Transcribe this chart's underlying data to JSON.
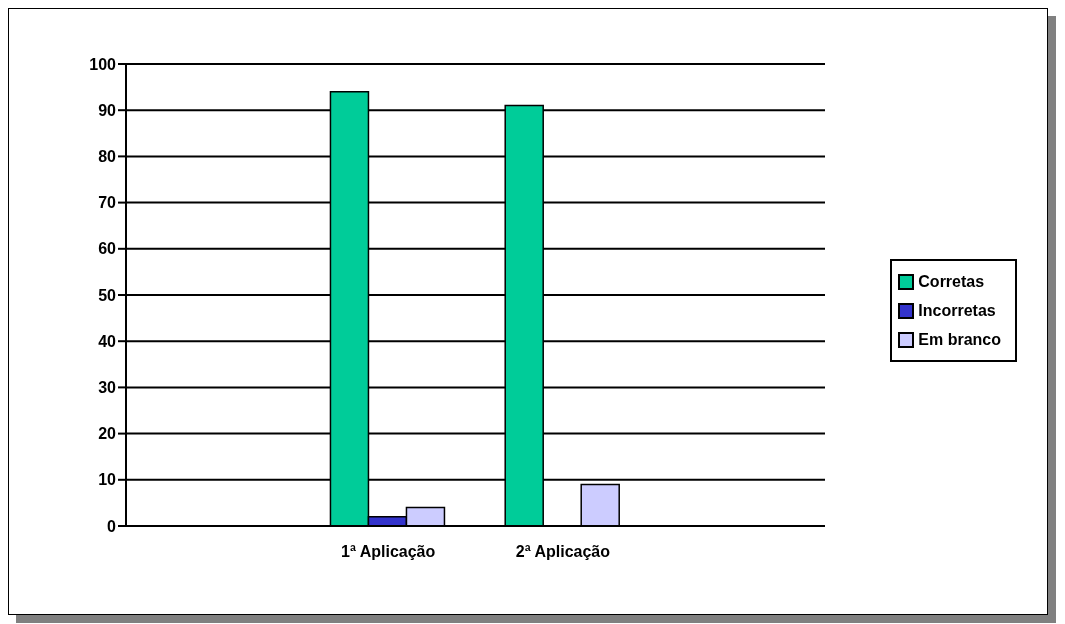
{
  "chart_data": {
    "type": "bar",
    "categories": [
      null,
      "1ª Aplicação",
      "2ª Aplicação",
      null
    ],
    "series": [
      {
        "name": "Corretas",
        "color": "#00cc99",
        "values": [
          null,
          94,
          91,
          null
        ]
      },
      {
        "name": "Incorretas",
        "color": "#3333cc",
        "values": [
          null,
          2,
          0,
          null
        ]
      },
      {
        "name": "Em branco",
        "color": "#ccccff",
        "values": [
          null,
          4,
          9,
          null
        ]
      }
    ],
    "ylim": [
      0,
      100
    ],
    "yticks": [
      0,
      10,
      20,
      30,
      40,
      50,
      60,
      70,
      80,
      90,
      100
    ],
    "grid": "y",
    "legend": "right"
  }
}
